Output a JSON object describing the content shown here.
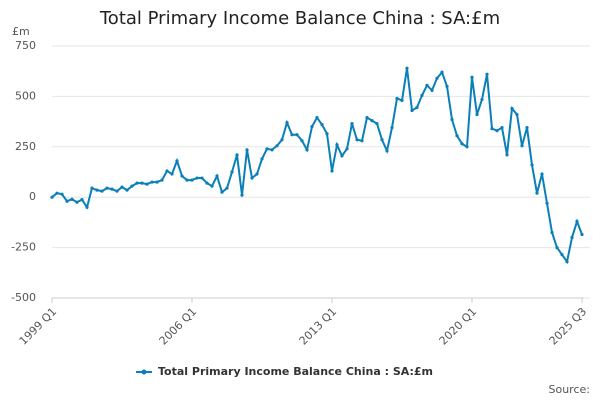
{
  "chart_data": {
    "type": "line",
    "title": "Total Primary Income Balance China : SA:£m",
    "y_label": "£m",
    "source": "Source:",
    "categories": [
      "1999 Q1",
      null,
      null,
      null,
      null,
      null,
      null,
      null,
      null,
      null,
      null,
      null,
      null,
      null,
      null,
      null,
      null,
      null,
      null,
      null,
      null,
      null,
      null,
      null,
      null,
      null,
      null,
      null,
      "2006 Q1",
      null,
      null,
      null,
      null,
      null,
      null,
      null,
      null,
      null,
      null,
      null,
      null,
      null,
      null,
      null,
      null,
      null,
      null,
      null,
      null,
      null,
      null,
      null,
      null,
      null,
      null,
      null,
      "2013 Q1",
      null,
      null,
      null,
      null,
      null,
      null,
      null,
      null,
      null,
      null,
      null,
      null,
      null,
      null,
      null,
      null,
      null,
      null,
      null,
      null,
      null,
      null,
      null,
      null,
      null,
      null,
      null,
      "2020 Q1",
      null,
      null,
      null,
      null,
      null,
      null,
      null,
      null,
      null,
      null,
      null,
      null,
      null,
      null,
      null,
      null,
      null,
      null,
      null,
      null,
      null,
      "2025 Q3"
    ],
    "series": [
      {
        "name": "Total Primary Income Balance China : SA:£m",
        "color": "#0b7fb8",
        "values": [
          0,
          20,
          15,
          -20,
          -10,
          -25,
          -12,
          -50,
          45,
          35,
          30,
          45,
          40,
          30,
          50,
          35,
          55,
          70,
          70,
          65,
          75,
          75,
          85,
          130,
          115,
          180,
          105,
          85,
          85,
          95,
          95,
          70,
          55,
          105,
          25,
          45,
          125,
          210,
          10,
          235,
          95,
          115,
          190,
          240,
          235,
          255,
          285,
          370,
          310,
          310,
          280,
          235,
          350,
          395,
          360,
          315,
          130,
          260,
          205,
          240,
          365,
          285,
          280,
          395,
          380,
          365,
          285,
          230,
          345,
          490,
          480,
          640,
          430,
          445,
          505,
          555,
          530,
          590,
          620,
          550,
          385,
          305,
          265,
          250,
          595,
          410,
          485,
          610,
          340,
          330,
          345,
          210,
          440,
          410,
          255,
          345,
          160,
          20,
          115,
          -30,
          -175,
          -250,
          -285,
          -320,
          -200,
          -120,
          -185
        ]
      }
    ],
    "ylim": [
      -500,
      750
    ],
    "yticks": [
      -500,
      -250,
      0,
      250,
      500,
      750
    ],
    "grid": true,
    "legend": "bottom"
  }
}
